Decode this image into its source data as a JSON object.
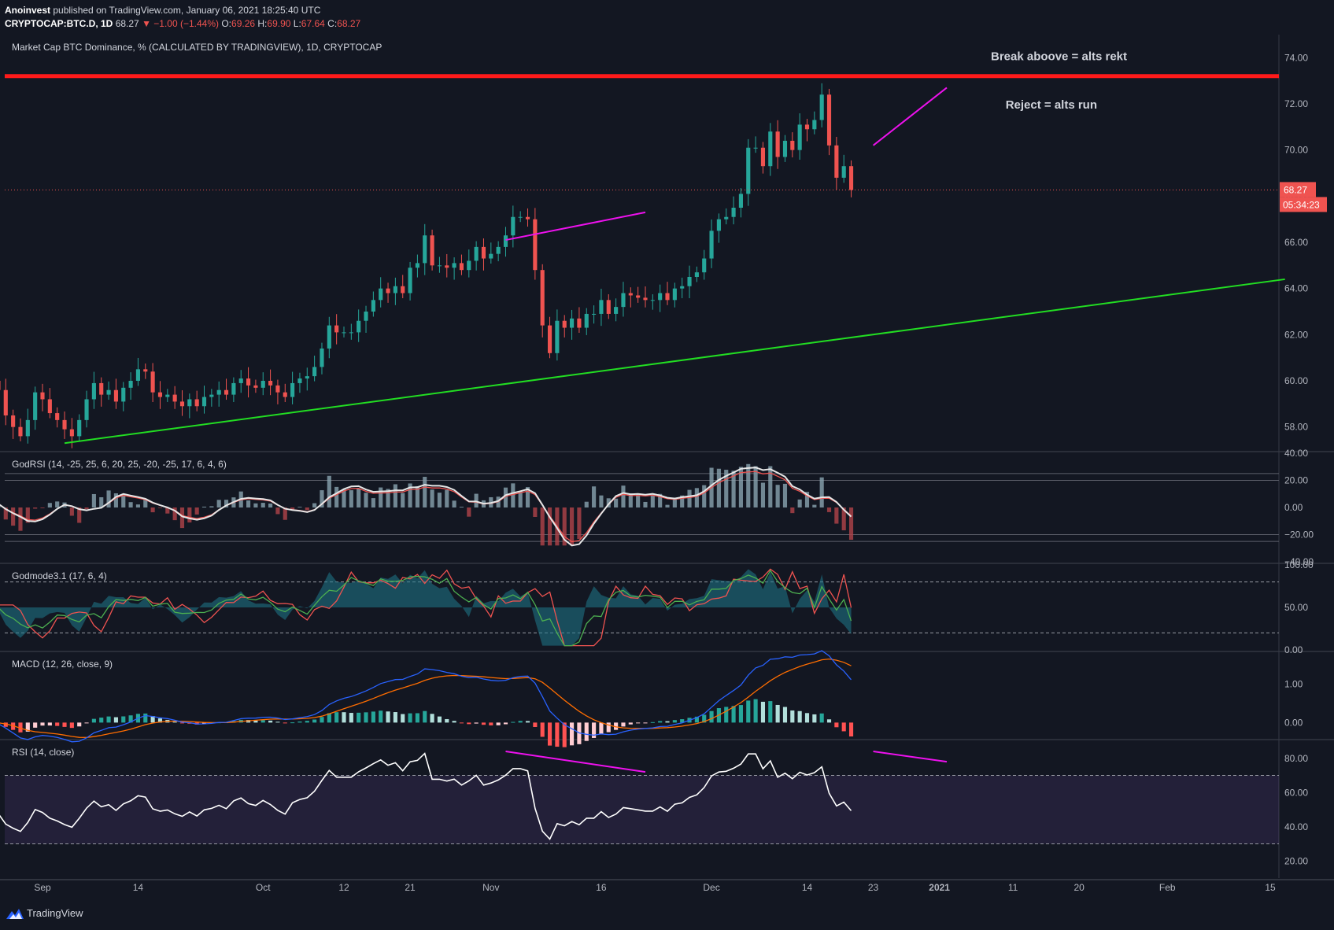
{
  "header": {
    "publisher": "Anoinvest",
    "published_text": "published on TradingView.com, January 06, 2021 18:25:40 UTC",
    "symbol": "CRYPTOCAP:BTC.D, 1D",
    "last": "68.27",
    "change": "▼ −1.00 (−1.44%)",
    "o_label": "O:",
    "o": "69.26",
    "h_label": "H:",
    "h": "69.90",
    "l_label": "L:",
    "l": "67.64",
    "c_label": "C:",
    "c": "68.27"
  },
  "brand": "TradingView",
  "colors": {
    "background": "#131722",
    "up": "#26a69a",
    "down": "#ef5350",
    "resistance": "#ff1a1a",
    "support": "#22dd22",
    "divergence": "#ee11ee"
  },
  "chart_data": [
    {
      "type": "candlestick",
      "title": "Market Cap BTC Dominance, % (CALCULATED BY TRADINGVIEW), 1D, CRYPTOCAP",
      "x_labels": [
        "Sep",
        "14",
        "Oct",
        "12",
        "21",
        "Nov",
        "16",
        "Dec",
        "14",
        "23",
        "2021",
        "11",
        "20",
        "Feb",
        "15"
      ],
      "x_dates": [
        "2020-09-01",
        "2020-09-14",
        "2020-10-01",
        "2020-10-12",
        "2020-10-21",
        "2020-11-01",
        "2020-11-16",
        "2020-12-01",
        "2020-12-14",
        "2020-12-23",
        "2021-01-01",
        "2021-01-11",
        "2021-01-20",
        "2021-02-01",
        "2021-02-15"
      ],
      "y_ticks": [
        "74.00",
        "72.00",
        "70.00",
        "68.00",
        "66.00",
        "64.00",
        "62.00",
        "60.00",
        "58.00"
      ],
      "ylim": [
        57,
        75
      ],
      "last_price": "68.27",
      "countdown": "05:34:23",
      "closes": [
        60.0,
        59.6,
        58.5,
        58.0,
        57.6,
        58.3,
        59.5,
        59.2,
        58.6,
        58.3,
        57.9,
        57.6,
        58.3,
        59.2,
        59.9,
        59.4,
        59.6,
        59.1,
        59.7,
        60.0,
        60.5,
        60.4,
        59.5,
        59.3,
        59.4,
        59.1,
        58.9,
        59.2,
        58.9,
        59.3,
        59.4,
        59.6,
        59.4,
        59.9,
        60.1,
        59.8,
        59.7,
        60.0,
        59.8,
        59.5,
        59.3,
        59.9,
        60.1,
        60.2,
        60.6,
        61.4,
        62.4,
        62.1,
        62.1,
        62.1,
        62.6,
        63.0,
        63.5,
        64.0,
        63.8,
        64.1,
        63.8,
        64.9,
        65.1,
        66.3,
        65.0,
        65.0,
        64.9,
        65.1,
        64.8,
        65.2,
        65.8,
        65.3,
        65.5,
        65.8,
        66.3,
        67.1,
        67.1,
        67.0,
        64.8,
        62.4,
        61.2,
        62.6,
        62.3,
        62.7,
        62.3,
        62.9,
        62.9,
        63.5,
        62.9,
        63.2,
        63.8,
        63.7,
        63.6,
        63.5,
        63.5,
        63.8,
        63.5,
        64.0,
        64.1,
        64.5,
        64.7,
        65.3,
        66.5,
        67.0,
        67.1,
        67.5,
        68.1,
        70.1,
        70.1,
        69.3,
        70.8,
        69.7,
        70.4,
        70.0,
        71.1,
        70.9,
        71.3,
        72.4,
        70.2,
        68.8,
        69.3,
        68.27
      ],
      "support_line": {
        "from": "2020-09-04",
        "value_from": 57.3,
        "to": "2021-02-17",
        "value_to": 64.4
      },
      "resistance_line": {
        "value": 73.2
      },
      "divergence_lines": [
        {
          "from": "2020-11-03",
          "value_from": 66.1,
          "to": "2020-11-22",
          "value_to": 67.3
        },
        {
          "from": "2020-12-23",
          "value_from": 70.2,
          "to": "2021-01-02",
          "value_to": 72.7
        }
      ],
      "annotations": [
        {
          "text": "Break aboove = alts rekt",
          "date": "2021-01-08",
          "value": 73.9
        },
        {
          "text": "Reject = alts run",
          "date": "2021-01-10",
          "value": 71.8
        }
      ]
    },
    {
      "type": "line",
      "title": "GodRSI (14, -25, 25, 6, 20, 25, -20, -25, 17, 6, 4, 6)",
      "y_ticks": [
        "40.00",
        "20.00",
        "0.00",
        "−20.00",
        "−40.00"
      ],
      "ylim": [
        -40,
        40
      ],
      "levels": [
        25,
        20,
        -20,
        -25
      ]
    },
    {
      "type": "line",
      "title": "Godmode3.1 (17, 6, 4)",
      "y_ticks": [
        "100.00",
        "50.00",
        "0.00"
      ],
      "ylim": [
        0,
        100
      ],
      "levels": [
        80,
        20
      ]
    },
    {
      "type": "line",
      "title": "MACD (12, 26, close, 9)",
      "y_ticks": [
        "1.00",
        "0.00"
      ],
      "ylim": [
        -0.4,
        1.8
      ]
    },
    {
      "type": "line",
      "title": "RSI (14, close)",
      "y_ticks": [
        "80.00",
        "60.00",
        "40.00",
        "20.00"
      ],
      "ylim": [
        10,
        90
      ],
      "band": [
        30,
        70
      ]
    }
  ]
}
